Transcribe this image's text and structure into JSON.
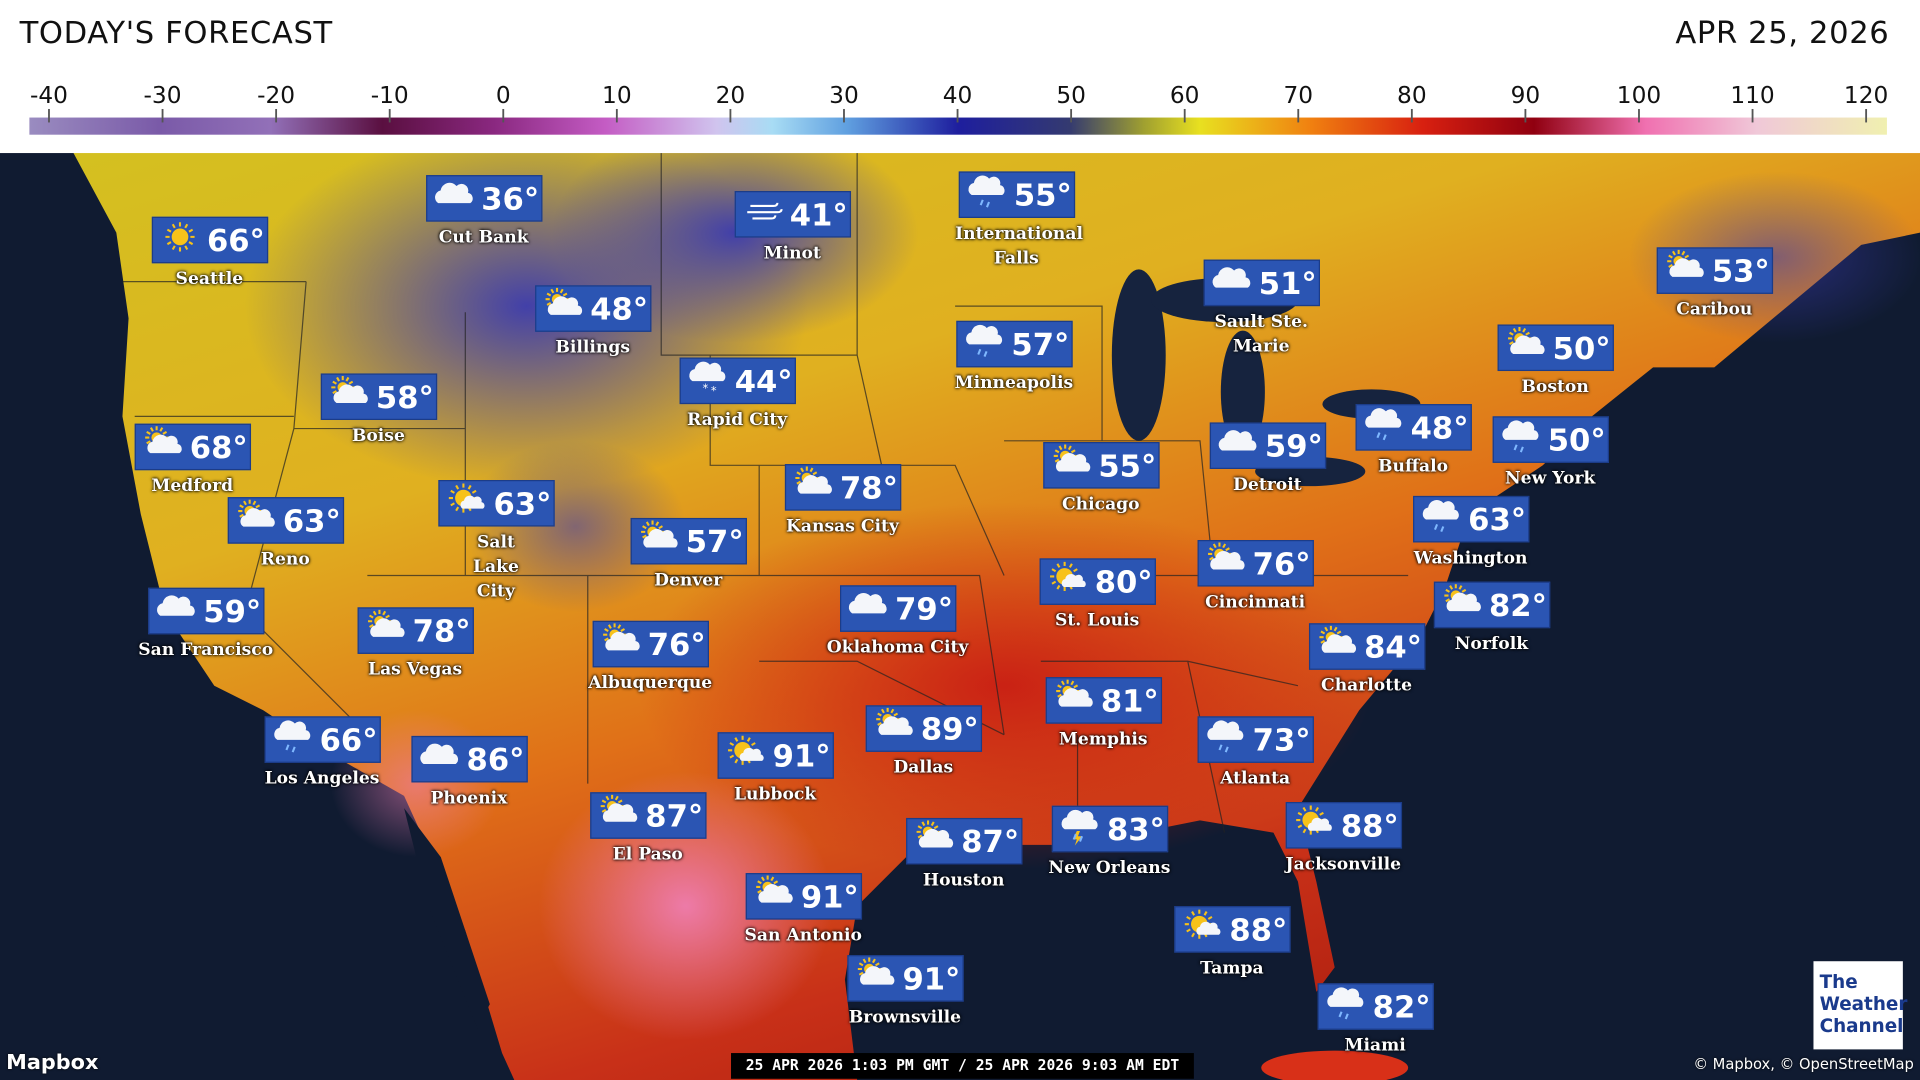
{
  "header": {
    "title": "TODAY'S FORECAST",
    "date": "APR 25, 2026"
  },
  "scale": {
    "ticks": [
      -40,
      -30,
      -20,
      -10,
      0,
      10,
      20,
      30,
      40,
      50,
      60,
      70,
      80,
      90,
      100,
      110,
      120
    ]
  },
  "cities": [
    {
      "name": "Seattle",
      "temp": "66°",
      "icon": "sunny"
    },
    {
      "name": "Cut Bank",
      "temp": "36°",
      "icon": "cloudy"
    },
    {
      "name": "Minot",
      "temp": "41°",
      "icon": "windy"
    },
    {
      "name": "International Falls",
      "temp": "55°",
      "icon": "rain"
    },
    {
      "name": "Billings",
      "temp": "48°",
      "icon": "partly-cloudy"
    },
    {
      "name": "Rapid City",
      "temp": "44°",
      "icon": "snow"
    },
    {
      "name": "Boise",
      "temp": "58°",
      "icon": "partly-cloudy"
    },
    {
      "name": "Minneapolis",
      "temp": "57°",
      "icon": "rain"
    },
    {
      "name": "Sault Ste. Marie",
      "temp": "51°",
      "icon": "cloudy"
    },
    {
      "name": "Caribou",
      "temp": "53°",
      "icon": "partly-cloudy"
    },
    {
      "name": "Medford",
      "temp": "68°",
      "icon": "partly-cloudy"
    },
    {
      "name": "Buffalo",
      "temp": "48°",
      "icon": "rain"
    },
    {
      "name": "Boston",
      "temp": "50°",
      "icon": "partly-cloudy"
    },
    {
      "name": "New York",
      "temp": "50°",
      "icon": "rain"
    },
    {
      "name": "Chicago",
      "temp": "55°",
      "icon": "partly-cloudy"
    },
    {
      "name": "Detroit",
      "temp": "59°",
      "icon": "cloudy"
    },
    {
      "name": "Kansas City",
      "temp": "78°",
      "icon": "partly-cloudy"
    },
    {
      "name": "Reno",
      "temp": "63°",
      "icon": "partly-cloudy"
    },
    {
      "name": "Salt Lake City",
      "temp": "63°",
      "icon": "mostly-sunny"
    },
    {
      "name": "Denver",
      "temp": "57°",
      "icon": "partly-cloudy"
    },
    {
      "name": "Washington",
      "temp": "63°",
      "icon": "rain"
    },
    {
      "name": "Cincinnati",
      "temp": "76°",
      "icon": "partly-cloudy"
    },
    {
      "name": "St. Louis",
      "temp": "80°",
      "icon": "mostly-sunny"
    },
    {
      "name": "San Francisco",
      "temp": "59°",
      "icon": "cloudy"
    },
    {
      "name": "Oklahoma City",
      "temp": "79°",
      "icon": "cloudy"
    },
    {
      "name": "Norfolk",
      "temp": "82°",
      "icon": "partly-cloudy"
    },
    {
      "name": "Las Vegas",
      "temp": "78°",
      "icon": "partly-cloudy"
    },
    {
      "name": "Albuquerque",
      "temp": "76°",
      "icon": "partly-cloudy"
    },
    {
      "name": "Charlotte",
      "temp": "84°",
      "icon": "partly-cloudy"
    },
    {
      "name": "Memphis",
      "temp": "81°",
      "icon": "partly-cloudy"
    },
    {
      "name": "Dallas",
      "temp": "89°",
      "icon": "partly-cloudy"
    },
    {
      "name": "Atlanta",
      "temp": "73°",
      "icon": "rain"
    },
    {
      "name": "Los Angeles",
      "temp": "66°",
      "icon": "rain"
    },
    {
      "name": "Lubbock",
      "temp": "91°",
      "icon": "mostly-sunny"
    },
    {
      "name": "Phoenix",
      "temp": "86°",
      "icon": "cloudy"
    },
    {
      "name": "El Paso",
      "temp": "87°",
      "icon": "partly-cloudy"
    },
    {
      "name": "Jacksonville",
      "temp": "88°",
      "icon": "mostly-sunny"
    },
    {
      "name": "New Orleans",
      "temp": "83°",
      "icon": "thunder"
    },
    {
      "name": "Houston",
      "temp": "87°",
      "icon": "partly-cloudy"
    },
    {
      "name": "San Antonio",
      "temp": "91°",
      "icon": "partly-cloudy"
    },
    {
      "name": "Tampa",
      "temp": "88°",
      "icon": "mostly-sunny"
    },
    {
      "name": "Brownsville",
      "temp": "91°",
      "icon": "partly-cloudy"
    },
    {
      "name": "Miami",
      "temp": "82°",
      "icon": "rain"
    }
  ],
  "footer": {
    "attribution_left": "Mapbox",
    "timestamp": "25 APR 2026 1:03 PM GMT / 25 APR 2026 9:03 AM EDT",
    "attribution_right": "© Mapbox, © OpenStreetMap",
    "logo": "The Weather Channel"
  }
}
